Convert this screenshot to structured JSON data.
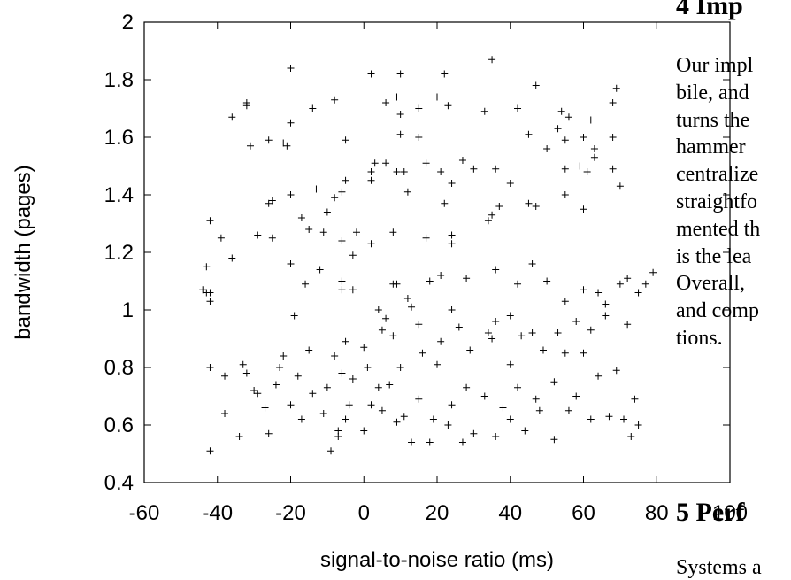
{
  "chart_data": {
    "type": "scatter",
    "title": "",
    "xlabel": "signal-to-noise ratio (ms)",
    "ylabel": "bandwidth (pages)",
    "xlim": [
      -60,
      100
    ],
    "ylim": [
      0.4,
      2
    ],
    "xticks": [
      "-60",
      "-40",
      "-20",
      "0",
      "20",
      "40",
      "60",
      "80",
      "100"
    ],
    "yticks": [
      "0.4",
      "0.6",
      "0.8",
      "1",
      "1.2",
      "1.4",
      "1.6",
      "1.8",
      "2"
    ],
    "marker": "+",
    "grid": false,
    "legend": "none",
    "series": [
      {
        "points": [
          [
            -20,
            1.84
          ],
          [
            2,
            1.82
          ],
          [
            10,
            1.82
          ],
          [
            22,
            1.82
          ],
          [
            35,
            1.87
          ],
          [
            47,
            1.78
          ],
          [
            69,
            1.77
          ],
          [
            -8,
            1.73
          ],
          [
            6,
            1.72
          ],
          [
            9,
            1.74
          ],
          [
            20,
            1.74
          ],
          [
            23,
            1.71
          ],
          [
            -32,
            1.71
          ],
          [
            -32,
            1.72
          ],
          [
            -36,
            1.67
          ],
          [
            -14,
            1.7
          ],
          [
            15,
            1.7
          ],
          [
            42,
            1.7
          ],
          [
            54,
            1.69
          ],
          [
            56,
            1.67
          ],
          [
            62,
            1.66
          ],
          [
            68,
            1.72
          ],
          [
            -20,
            1.65
          ],
          [
            10,
            1.68
          ],
          [
            33,
            1.69
          ],
          [
            45,
            1.61
          ],
          [
            53,
            1.63
          ],
          [
            60,
            1.6
          ],
          [
            -31,
            1.57
          ],
          [
            -26,
            1.59
          ],
          [
            -22,
            1.58
          ],
          [
            -21,
            1.57
          ],
          [
            -5,
            1.59
          ],
          [
            10,
            1.61
          ],
          [
            15,
            1.6
          ],
          [
            50,
            1.56
          ],
          [
            55,
            1.59
          ],
          [
            63,
            1.56
          ],
          [
            68,
            1.6
          ],
          [
            2,
            1.48
          ],
          [
            3,
            1.51
          ],
          [
            6,
            1.51
          ],
          [
            9,
            1.48
          ],
          [
            11,
            1.48
          ],
          [
            17,
            1.51
          ],
          [
            21,
            1.48
          ],
          [
            27,
            1.52
          ],
          [
            30,
            1.49
          ],
          [
            36,
            1.49
          ],
          [
            55,
            1.49
          ],
          [
            59,
            1.5
          ],
          [
            61,
            1.48
          ],
          [
            63,
            1.53
          ],
          [
            68,
            1.49
          ],
          [
            -5,
            1.45
          ],
          [
            -13,
            1.42
          ],
          [
            -20,
            1.4
          ],
          [
            -25,
            1.38
          ],
          [
            -26,
            1.37
          ],
          [
            2,
            1.45
          ],
          [
            12,
            1.41
          ],
          [
            22,
            1.37
          ],
          [
            24,
            1.44
          ],
          [
            35,
            1.33
          ],
          [
            37,
            1.36
          ],
          [
            40,
            1.44
          ],
          [
            45,
            1.37
          ],
          [
            47,
            1.36
          ],
          [
            55,
            1.4
          ],
          [
            60,
            1.35
          ],
          [
            70,
            1.43
          ],
          [
            -42,
            1.31
          ],
          [
            -39,
            1.25
          ],
          [
            -29,
            1.26
          ],
          [
            -25,
            1.25
          ],
          [
            -17,
            1.32
          ],
          [
            -15,
            1.28
          ],
          [
            -10,
            1.34
          ],
          [
            -8,
            1.39
          ],
          [
            -6,
            1.41
          ],
          [
            -3,
            1.19
          ],
          [
            -11,
            1.27
          ],
          [
            -6,
            1.24
          ],
          [
            -2,
            1.27
          ],
          [
            8,
            1.27
          ],
          [
            17,
            1.25
          ],
          [
            24,
            1.23
          ],
          [
            24,
            1.26
          ],
          [
            34,
            1.31
          ],
          [
            -43,
            1.15
          ],
          [
            -36,
            1.18
          ],
          [
            -20,
            1.16
          ],
          [
            -16,
            1.09
          ],
          [
            -12,
            1.14
          ],
          [
            -6,
            1.07
          ],
          [
            -3,
            1.07
          ],
          [
            2,
            1.23
          ],
          [
            -44,
            1.07
          ],
          [
            -42,
            1.06
          ],
          [
            -42,
            1.03
          ],
          [
            -43,
            1.06
          ],
          [
            -19,
            0.98
          ],
          [
            -6,
            1.1
          ],
          [
            4,
            1.0
          ],
          [
            6,
            0.97
          ],
          [
            8,
            1.09
          ],
          [
            9,
            1.09
          ],
          [
            12,
            1.04
          ],
          [
            13,
            1.01
          ],
          [
            18,
            1.1
          ],
          [
            21,
            1.12
          ],
          [
            24,
            1.0
          ],
          [
            28,
            1.11
          ],
          [
            36,
            1.14
          ],
          [
            42,
            1.09
          ],
          [
            46,
            1.16
          ],
          [
            50,
            1.1
          ],
          [
            55,
            1.03
          ],
          [
            60,
            1.07
          ],
          [
            64,
            1.06
          ],
          [
            66,
            1.02
          ],
          [
            70,
            1.09
          ],
          [
            72,
            0.95
          ],
          [
            -42,
            0.8
          ],
          [
            -38,
            0.77
          ],
          [
            -33,
            0.81
          ],
          [
            -29,
            0.71
          ],
          [
            -23,
            0.8
          ],
          [
            -18,
            0.77
          ],
          [
            -10,
            0.73
          ],
          [
            -6,
            0.78
          ],
          [
            -5,
            0.89
          ],
          [
            -4,
            0.67
          ],
          [
            -3,
            0.76
          ],
          [
            1,
            0.8
          ],
          [
            4,
            0.73
          ],
          [
            8,
            0.91
          ],
          [
            10,
            0.8
          ],
          [
            15,
            0.95
          ],
          [
            20,
            0.81
          ],
          [
            26,
            0.94
          ],
          [
            35,
            0.9
          ],
          [
            36,
            0.96
          ],
          [
            40,
            0.81
          ],
          [
            43,
            0.91
          ],
          [
            49,
            0.86
          ],
          [
            53,
            0.92
          ],
          [
            58,
            0.96
          ],
          [
            60,
            0.85
          ],
          [
            -42,
            0.51
          ],
          [
            -34,
            0.56
          ],
          [
            -26,
            0.57
          ],
          [
            -17,
            0.62
          ],
          [
            -9,
            0.51
          ],
          [
            -7,
            0.56
          ],
          [
            -5,
            0.62
          ],
          [
            0,
            0.58
          ],
          [
            5,
            0.65
          ],
          [
            9,
            0.61
          ],
          [
            13,
            0.54
          ],
          [
            18,
            0.54
          ],
          [
            23,
            0.6
          ],
          [
            27,
            0.54
          ],
          [
            30,
            0.57
          ],
          [
            36,
            0.56
          ],
          [
            40,
            0.62
          ],
          [
            44,
            0.58
          ],
          [
            48,
            0.65
          ],
          [
            52,
            0.55
          ],
          [
            56,
            0.65
          ],
          [
            62,
            0.62
          ],
          [
            67,
            0.63
          ],
          [
            71,
            0.62
          ],
          [
            73,
            0.56
          ],
          [
            75,
            0.6
          ],
          [
            -38,
            0.64
          ],
          [
            -30,
            0.72
          ],
          [
            -27,
            0.66
          ],
          [
            -24,
            0.74
          ],
          [
            -20,
            0.67
          ],
          [
            -14,
            0.71
          ],
          [
            -11,
            0.64
          ],
          [
            -7,
            0.58
          ],
          [
            2,
            0.67
          ],
          [
            7,
            0.74
          ],
          [
            11,
            0.63
          ],
          [
            15,
            0.69
          ],
          [
            19,
            0.62
          ],
          [
            24,
            0.67
          ],
          [
            28,
            0.73
          ],
          [
            33,
            0.7
          ],
          [
            38,
            0.66
          ],
          [
            42,
            0.73
          ],
          [
            47,
            0.69
          ],
          [
            52,
            0.75
          ],
          [
            58,
            0.7
          ],
          [
            64,
            0.77
          ],
          [
            69,
            0.79
          ],
          [
            74,
            0.69
          ],
          [
            -32,
            0.78
          ],
          [
            -22,
            0.84
          ],
          [
            -15,
            0.86
          ],
          [
            -8,
            0.84
          ],
          [
            0,
            0.87
          ],
          [
            5,
            0.93
          ],
          [
            16,
            0.85
          ],
          [
            21,
            0.89
          ],
          [
            29,
            0.86
          ],
          [
            34,
            0.92
          ],
          [
            40,
            0.98
          ],
          [
            46,
            0.92
          ],
          [
            55,
            0.85
          ],
          [
            62,
            0.93
          ],
          [
            66,
            0.98
          ],
          [
            72,
            1.11
          ],
          [
            75,
            1.06
          ],
          [
            77,
            1.09
          ],
          [
            79,
            1.13
          ]
        ]
      }
    ]
  },
  "paper": {
    "heading_4": "4   Imp",
    "body_lines": [
      "Our impl",
      "bile, and",
      "turns the",
      "hammer",
      "centralize",
      "straightfo",
      "mented th",
      "is the lea",
      "Overall,",
      "and comp",
      "tions."
    ],
    "heading_5": "5   Perf",
    "bottom_line": "Systems a"
  }
}
